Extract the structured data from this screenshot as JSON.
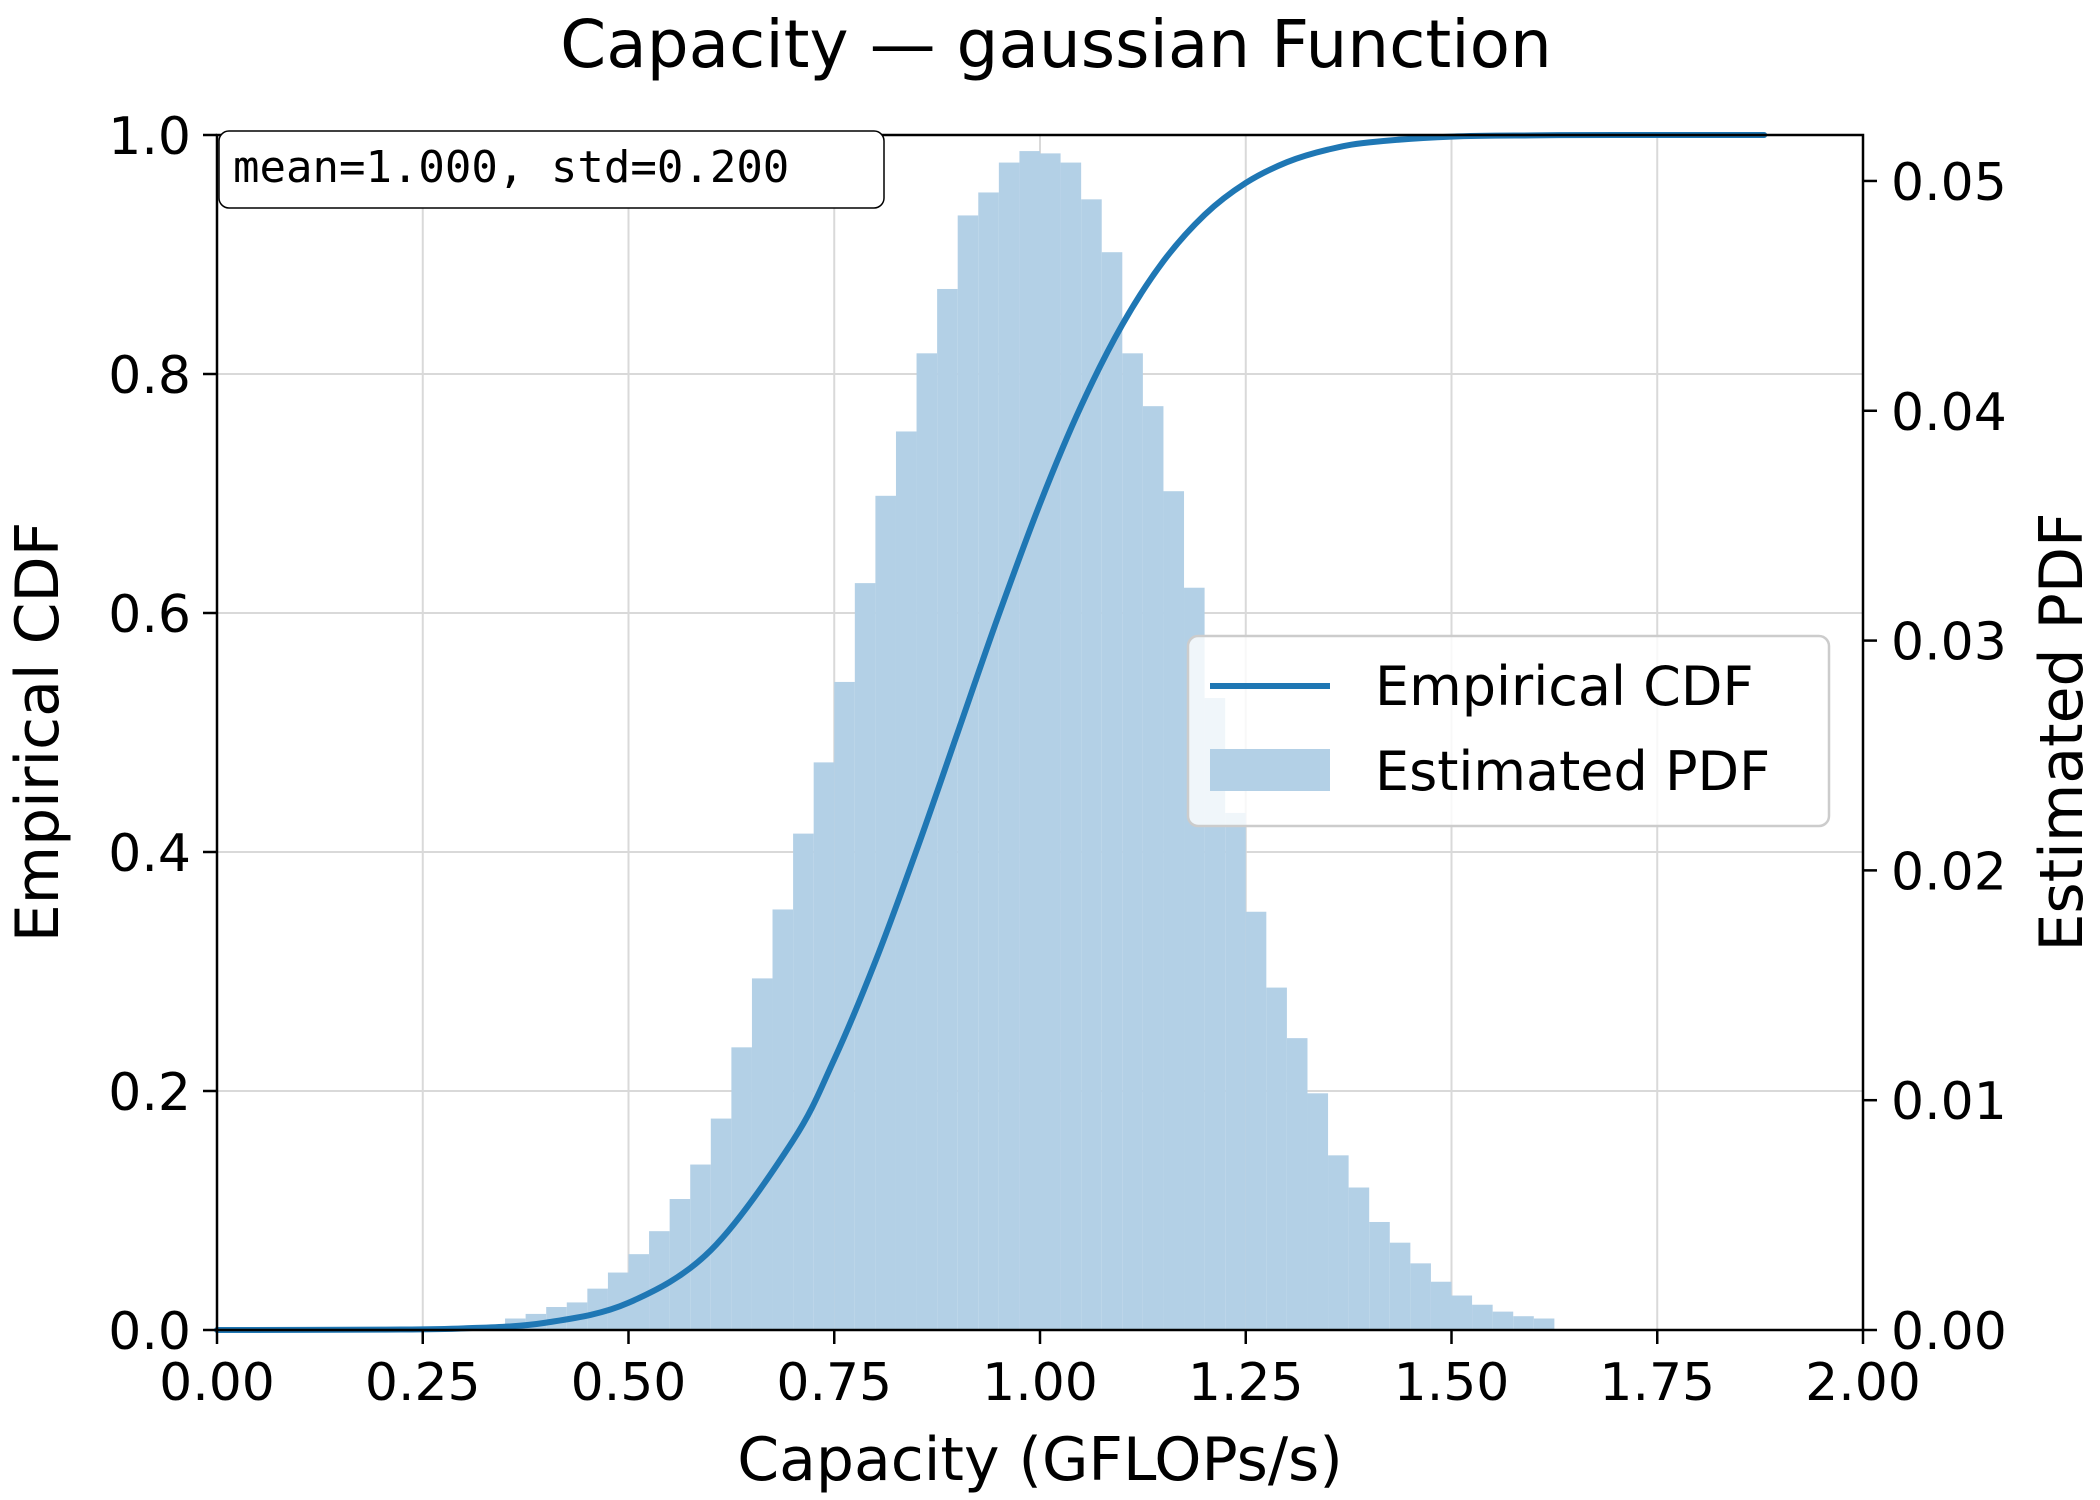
{
  "chart_data": {
    "type": "bar",
    "title": "Capacity — gaussian Function",
    "xlabel": "Capacity (GFLOPs/s)",
    "ylabel_left": "Empirical CDF",
    "ylabel_right": "Estimated PDF",
    "xlim": [
      0,
      2
    ],
    "ylim_left": [
      0,
      1
    ],
    "ylim_right": [
      0,
      0.052
    ],
    "x_ticks": [
      "0.00",
      "0.25",
      "0.50",
      "0.75",
      "1.00",
      "1.25",
      "1.50",
      "1.75",
      "2.00"
    ],
    "y_ticks_left": [
      "0.0",
      "0.2",
      "0.4",
      "0.6",
      "0.8",
      "1.0"
    ],
    "y_ticks_right": [
      "0.00",
      "0.01",
      "0.02",
      "0.03",
      "0.04",
      "0.05"
    ],
    "grid": true,
    "legend_position": "center-right",
    "annotation": "mean=1.000, std=0.200",
    "colors": {
      "cdf_line": "#1f77b4",
      "pdf_fill": "#b3d0e6"
    },
    "series": [
      {
        "name": "Empirical CDF",
        "type": "line",
        "axis": "left",
        "x": [
          0.0,
          0.2,
          0.3,
          0.4,
          0.5,
          0.6,
          0.7,
          0.75,
          0.8,
          0.85,
          0.9,
          0.95,
          1.0,
          1.05,
          1.1,
          1.15,
          1.2,
          1.25,
          1.3,
          1.35,
          1.4,
          1.5,
          1.6,
          1.7,
          1.88
        ],
        "y": [
          0.0,
          0.0003,
          0.0013,
          0.0062,
          0.0228,
          0.0668,
          0.1587,
          0.2266,
          0.3085,
          0.4013,
          0.5,
          0.5987,
          0.6915,
          0.7734,
          0.8413,
          0.8944,
          0.9332,
          0.9599,
          0.9772,
          0.9878,
          0.9938,
          0.9987,
          0.9997,
          0.99997,
          1.0
        ]
      },
      {
        "name": "Estimated PDF",
        "type": "histogram",
        "axis": "right",
        "bin_width": 0.025,
        "bin_start": [
          0.35,
          0.375,
          0.4,
          0.425,
          0.45,
          0.475,
          0.5,
          0.525,
          0.55,
          0.575,
          0.6,
          0.625,
          0.65,
          0.675,
          0.7,
          0.725,
          0.75,
          0.775,
          0.8,
          0.825,
          0.85,
          0.875,
          0.9,
          0.925,
          0.95,
          0.975,
          1.0,
          1.025,
          1.05,
          1.075,
          1.1,
          1.125,
          1.15,
          1.175,
          1.2,
          1.225,
          1.25,
          1.275,
          1.3,
          1.325,
          1.35,
          1.375,
          1.4,
          1.425,
          1.45,
          1.475,
          1.5,
          1.525,
          1.55,
          1.575,
          1.6
        ],
        "values": [
          0.0005,
          0.0007,
          0.001,
          0.0012,
          0.0018,
          0.0025,
          0.0033,
          0.0043,
          0.0057,
          0.0072,
          0.0092,
          0.0123,
          0.0153,
          0.0183,
          0.0216,
          0.0247,
          0.0282,
          0.0325,
          0.0363,
          0.0391,
          0.0425,
          0.0453,
          0.0485,
          0.0495,
          0.0508,
          0.0513,
          0.0512,
          0.0508,
          0.0492,
          0.0469,
          0.0425,
          0.0402,
          0.0365,
          0.0323,
          0.0275,
          0.0225,
          0.0182,
          0.0149,
          0.0127,
          0.0103,
          0.0076,
          0.0062,
          0.0047,
          0.0038,
          0.0029,
          0.0021,
          0.0015,
          0.0011,
          0.0008,
          0.0006,
          0.0005
        ]
      }
    ]
  }
}
